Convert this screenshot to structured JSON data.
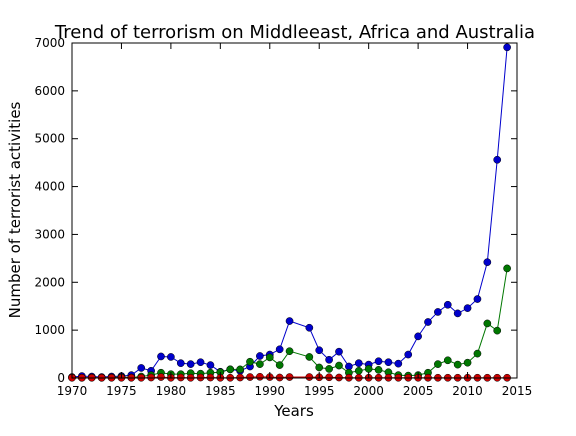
{
  "chart_data": {
    "type": "line",
    "title": "Trend of terrorism on Middleeast, Africa and Australia",
    "xlabel": "Years",
    "ylabel": "Number of terrorist activities",
    "xlim": [
      1970,
      2015
    ],
    "ylim": [
      0,
      7000
    ],
    "xticks": [
      "1970",
      "1975",
      "1980",
      "1985",
      "1990",
      "1995",
      "2000",
      "2005",
      "2010",
      "2015"
    ],
    "yticks": [
      "0",
      "1000",
      "2000",
      "3000",
      "4000",
      "5000",
      "6000",
      "7000"
    ],
    "grid": false,
    "legend": "none",
    "series": [
      {
        "color": "#0000cc",
        "x": [
          1970,
          1971,
          1972,
          1973,
          1974,
          1975,
          1976,
          1977,
          1978,
          1979,
          1980,
          1981,
          1982,
          1983,
          1984,
          1985,
          1986,
          1987,
          1988,
          1989,
          1990,
          1991,
          1992,
          1994,
          1995,
          1996,
          1997,
          1998,
          1999,
          2000,
          2001,
          2002,
          2003,
          2004,
          2005,
          2006,
          2007,
          2008,
          2009,
          2010,
          2011,
          2012,
          2013,
          2014
        ],
        "values": [
          20,
          40,
          30,
          20,
          30,
          40,
          60,
          210,
          150,
          450,
          440,
          310,
          290,
          330,
          270,
          130,
          180,
          150,
          240,
          460,
          490,
          600,
          1190,
          1050,
          580,
          380,
          550,
          240,
          310,
          280,
          350,
          330,
          300,
          490,
          870,
          1170,
          1380,
          1530,
          1350,
          1460,
          1650,
          2420,
          4560,
          6910
        ]
      },
      {
        "color": "#007700",
        "x": [
          1970,
          1971,
          1972,
          1973,
          1974,
          1975,
          1976,
          1977,
          1978,
          1979,
          1980,
          1981,
          1982,
          1983,
          1984,
          1985,
          1986,
          1987,
          1988,
          1989,
          1990,
          1991,
          1992,
          1994,
          1995,
          1996,
          1997,
          1998,
          1999,
          2000,
          2001,
          2002,
          2003,
          2004,
          2005,
          2006,
          2007,
          2008,
          2009,
          2010,
          2011,
          2012,
          2013,
          2014
        ],
        "values": [
          10,
          5,
          10,
          5,
          10,
          20,
          10,
          30,
          60,
          110,
          80,
          80,
          100,
          90,
          110,
          120,
          180,
          180,
          340,
          290,
          430,
          270,
          560,
          440,
          220,
          190,
          260,
          110,
          150,
          190,
          170,
          120,
          60,
          50,
          60,
          110,
          290,
          370,
          280,
          320,
          510,
          1140,
          990,
          2290
        ]
      },
      {
        "color": "#cc0000",
        "x": [
          1970,
          1971,
          1972,
          1973,
          1974,
          1975,
          1976,
          1977,
          1978,
          1979,
          1980,
          1981,
          1982,
          1983,
          1984,
          1985,
          1986,
          1987,
          1988,
          1989,
          1990,
          1991,
          1992,
          1994,
          1995,
          1996,
          1997,
          1998,
          1999,
          2000,
          2001,
          2002,
          2003,
          2004,
          2005,
          2006,
          2007,
          2008,
          2009,
          2010,
          2011,
          2012,
          2013,
          2014
        ],
        "values": [
          5,
          5,
          5,
          5,
          5,
          5,
          5,
          5,
          10,
          20,
          5,
          10,
          5,
          10,
          10,
          5,
          5,
          10,
          20,
          25,
          20,
          10,
          20,
          20,
          15,
          15,
          10,
          5,
          5,
          5,
          5,
          5,
          5,
          5,
          5,
          5,
          5,
          5,
          5,
          5,
          5,
          5,
          5,
          5
        ]
      }
    ]
  }
}
